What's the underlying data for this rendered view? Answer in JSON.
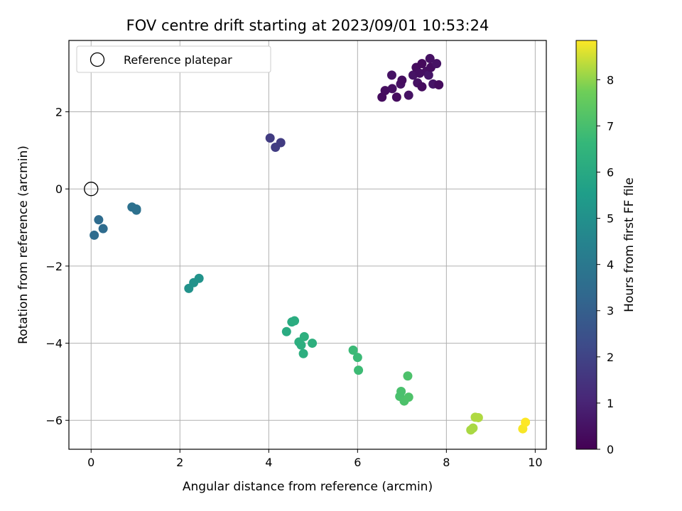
{
  "chart_data": {
    "type": "scatter",
    "title": "FOV centre drift starting at 2023/09/01 10:53:24",
    "xlabel": "Angular distance from reference (arcmin)",
    "ylabel": "Rotation from reference (arcmin)",
    "xlim": [
      -0.5,
      10.25
    ],
    "ylim": [
      -6.75,
      3.85
    ],
    "xticks": [
      0,
      2,
      4,
      6,
      8,
      10
    ],
    "yticks": [
      -6,
      -4,
      -2,
      0,
      2
    ],
    "grid": true,
    "legend": {
      "placement": "upper-left",
      "entries": [
        "Reference platepar"
      ]
    },
    "reference_point": {
      "x": 0,
      "y": 0
    },
    "colorbar": {
      "label": "Hours from first FF file",
      "colormap": "viridis",
      "range": [
        0,
        8.85
      ],
      "ticks": [
        0,
        1,
        2,
        3,
        4,
        5,
        6,
        7,
        8
      ]
    },
    "points": [
      {
        "x": 6.55,
        "y": 2.38,
        "h": 0.3
      },
      {
        "x": 6.62,
        "y": 2.55,
        "h": 0.35
      },
      {
        "x": 6.78,
        "y": 2.6,
        "h": 0.4
      },
      {
        "x": 6.88,
        "y": 2.38,
        "h": 0.3
      },
      {
        "x": 6.97,
        "y": 2.72,
        "h": 0.45
      },
      {
        "x": 7.0,
        "y": 2.82,
        "h": 0.35
      },
      {
        "x": 6.77,
        "y": 2.95,
        "h": 0.5
      },
      {
        "x": 7.15,
        "y": 2.43,
        "h": 0.5
      },
      {
        "x": 7.25,
        "y": 2.95,
        "h": 0.5
      },
      {
        "x": 7.32,
        "y": 3.15,
        "h": 0.3
      },
      {
        "x": 7.35,
        "y": 2.75,
        "h": 0.45
      },
      {
        "x": 7.45,
        "y": 2.65,
        "h": 0.3
      },
      {
        "x": 7.45,
        "y": 3.25,
        "h": 0.25
      },
      {
        "x": 7.55,
        "y": 3.05,
        "h": 0.4
      },
      {
        "x": 7.6,
        "y": 2.95,
        "h": 0.6
      },
      {
        "x": 7.63,
        "y": 3.38,
        "h": 0.45
      },
      {
        "x": 7.65,
        "y": 3.15,
        "h": 0.35
      },
      {
        "x": 7.7,
        "y": 2.72,
        "h": 0.55
      },
      {
        "x": 7.78,
        "y": 3.25,
        "h": 0.5
      },
      {
        "x": 7.83,
        "y": 2.7,
        "h": 0.3
      },
      {
        "x": 7.4,
        "y": 3.0,
        "h": 0.4
      },
      {
        "x": 4.03,
        "y": 1.32,
        "h": 1.75
      },
      {
        "x": 4.15,
        "y": 1.08,
        "h": 1.8
      },
      {
        "x": 4.27,
        "y": 1.2,
        "h": 1.75
      },
      {
        "x": 0.07,
        "y": -1.2,
        "h": 3.5
      },
      {
        "x": 0.17,
        "y": -0.8,
        "h": 3.5
      },
      {
        "x": 0.27,
        "y": -1.03,
        "h": 3.5
      },
      {
        "x": 0.92,
        "y": -0.47,
        "h": 3.7
      },
      {
        "x": 1.02,
        "y": -0.52,
        "h": 3.7
      },
      {
        "x": 1.02,
        "y": -0.55,
        "h": 3.7
      },
      {
        "x": 2.2,
        "y": -2.58,
        "h": 5.05
      },
      {
        "x": 2.31,
        "y": -2.43,
        "h": 5.05
      },
      {
        "x": 2.43,
        "y": -2.32,
        "h": 5.1
      },
      {
        "x": 4.4,
        "y": -3.7,
        "h": 6.1
      },
      {
        "x": 4.52,
        "y": -3.45,
        "h": 6.1
      },
      {
        "x": 4.58,
        "y": -3.42,
        "h": 6.15
      },
      {
        "x": 4.68,
        "y": -3.97,
        "h": 6.25
      },
      {
        "x": 4.73,
        "y": -4.05,
        "h": 6.25
      },
      {
        "x": 4.78,
        "y": -4.27,
        "h": 6.25
      },
      {
        "x": 4.8,
        "y": -3.83,
        "h": 6.3
      },
      {
        "x": 4.98,
        "y": -4.0,
        "h": 6.3
      },
      {
        "x": 5.9,
        "y": -4.18,
        "h": 6.75
      },
      {
        "x": 6.0,
        "y": -4.37,
        "h": 6.75
      },
      {
        "x": 6.02,
        "y": -4.7,
        "h": 6.8
      },
      {
        "x": 6.95,
        "y": -5.38,
        "h": 7.05
      },
      {
        "x": 6.98,
        "y": -5.25,
        "h": 7.05
      },
      {
        "x": 7.05,
        "y": -5.5,
        "h": 7.1
      },
      {
        "x": 7.13,
        "y": -4.85,
        "h": 7.1
      },
      {
        "x": 7.15,
        "y": -5.4,
        "h": 7.15
      },
      {
        "x": 8.55,
        "y": -6.25,
        "h": 8.2
      },
      {
        "x": 8.6,
        "y": -6.2,
        "h": 8.2
      },
      {
        "x": 8.65,
        "y": -5.92,
        "h": 8.25
      },
      {
        "x": 8.72,
        "y": -5.93,
        "h": 8.25
      },
      {
        "x": 9.72,
        "y": -6.22,
        "h": 8.8
      },
      {
        "x": 9.78,
        "y": -6.05,
        "h": 8.85
      }
    ]
  }
}
